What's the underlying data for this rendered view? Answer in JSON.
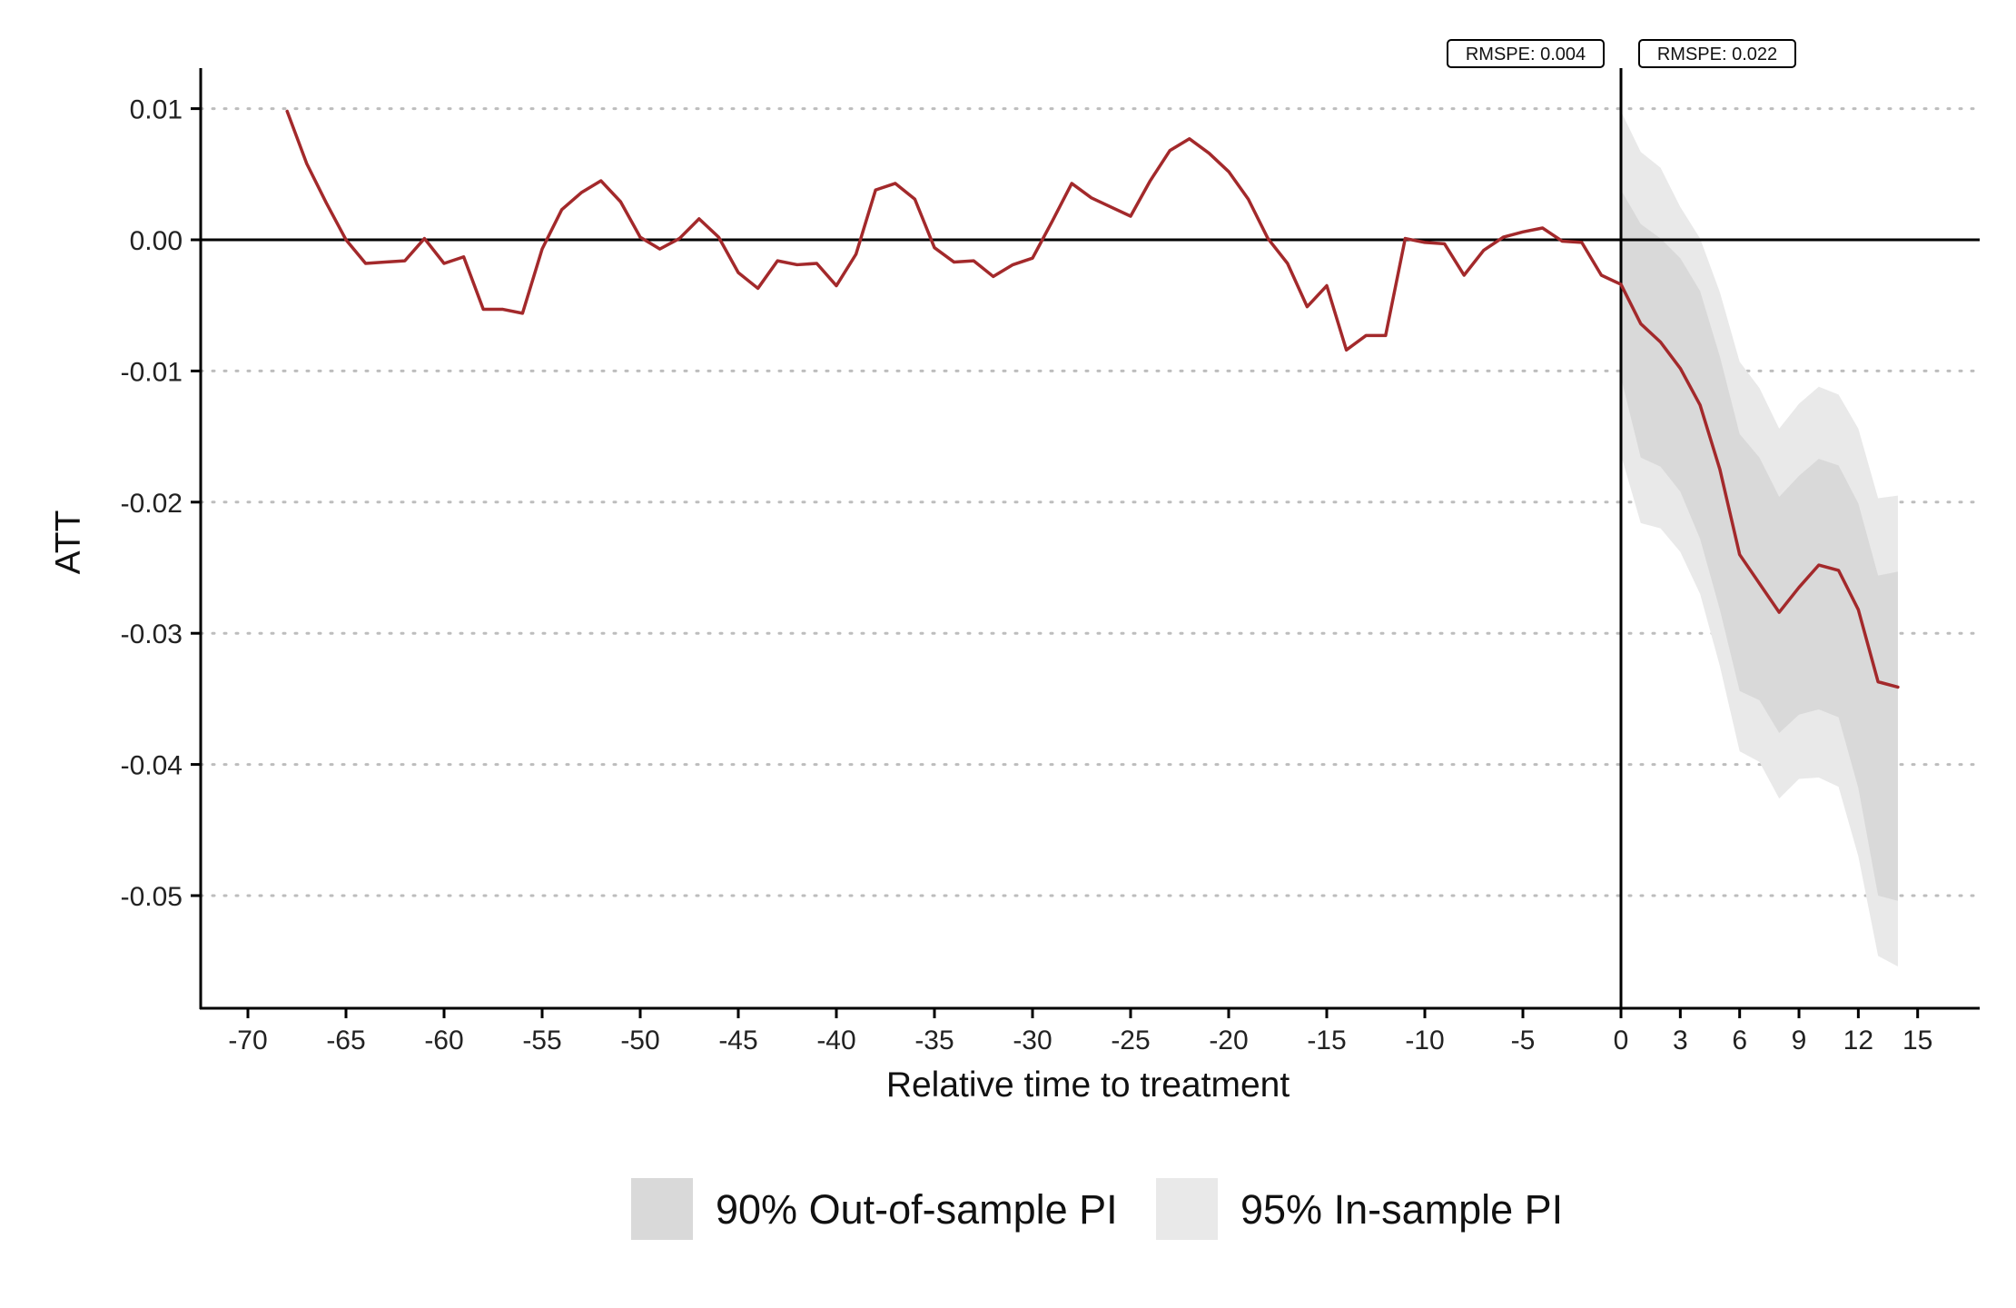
{
  "chart_data": {
    "type": "line",
    "title": "",
    "xlabel": "Relative time to treatment",
    "ylabel": "ATT",
    "xlim": [
      -72,
      18
    ],
    "ylim": [
      -0.059,
      0.0132
    ],
    "grid": {
      "horizontal_dotted": true,
      "vertical": false
    },
    "legend_position": "bottom",
    "x_ticks_pre": [
      -70,
      -65,
      -60,
      -55,
      -50,
      -45,
      -40,
      -35,
      -30,
      -25,
      -20,
      -15,
      -10,
      -5,
      0
    ],
    "x_ticks_post": [
      3,
      6,
      9,
      12,
      15
    ],
    "x_tick_labels_pre": [
      "-70",
      "-65",
      "-60",
      "-55",
      "-50",
      "-45",
      "-40",
      "-35",
      "-30",
      "-25",
      "-20",
      "-15",
      "-10",
      "-5",
      "0"
    ],
    "x_tick_labels_post": [
      "3",
      "6",
      "9",
      "12",
      "15"
    ],
    "y_ticks": [
      0.01,
      0.0,
      -0.01,
      -0.02,
      -0.03,
      -0.04,
      -0.05
    ],
    "y_tick_labels": [
      "0.01",
      "0.00",
      "-0.01",
      "-0.02",
      "-0.03",
      "-0.04",
      "-0.05"
    ],
    "reference_lines": {
      "horizontal_y": 0,
      "vertical_x": 0
    },
    "annotations": [
      {
        "text": "RMSPE: 0.004",
        "period": "pre-treatment"
      },
      {
        "text": "RMSPE: 0.022",
        "period": "post-treatment"
      }
    ],
    "series": [
      {
        "name": "",
        "color": "#a3292b",
        "x": [
          -68,
          -67,
          -66,
          -65,
          -64,
          -63,
          -62,
          -61,
          -60,
          -59,
          -58,
          -57,
          -56,
          -55,
          -54,
          -53,
          -52,
          -51,
          -50,
          -49,
          -48,
          -47,
          -46,
          -45,
          -44,
          -43,
          -42,
          -41,
          -40,
          -39,
          -38,
          -37,
          -36,
          -35,
          -34,
          -33,
          -32,
          -31,
          -30,
          -29,
          -28,
          -27,
          -26,
          -25,
          -24,
          -23,
          -22,
          -21,
          -20,
          -19,
          -18,
          -17,
          -16,
          -15,
          -14,
          -13,
          -12,
          -11,
          -10,
          -9,
          -8,
          -7,
          -6,
          -5,
          -4,
          -3,
          -2,
          -1,
          0,
          1,
          2,
          3,
          4,
          5,
          6,
          7,
          8,
          9,
          10,
          11,
          12,
          13,
          14
        ],
        "values": [
          0.0098,
          0.0058,
          0.0028,
          0.0,
          -0.0018,
          -0.0017,
          -0.0016,
          0.0001,
          -0.0018,
          -0.0013,
          -0.0053,
          -0.0053,
          -0.0056,
          -0.0007,
          0.0023,
          0.0036,
          0.0045,
          0.0029,
          0.0002,
          -0.0007,
          0.0001,
          0.0016,
          0.0002,
          -0.0025,
          -0.0037,
          -0.0016,
          -0.0019,
          -0.0018,
          -0.0035,
          -0.0011,
          0.0038,
          0.0043,
          0.0031,
          -0.0006,
          -0.0017,
          -0.0016,
          -0.0028,
          -0.0019,
          -0.0014,
          0.0014,
          0.0043,
          0.0032,
          0.0025,
          0.0018,
          0.0045,
          0.0068,
          0.0077,
          0.0066,
          0.0052,
          0.0031,
          0.0001,
          -0.0018,
          -0.0051,
          -0.0035,
          -0.0084,
          -0.0073,
          -0.0073,
          0.0001,
          -0.0002,
          -0.0003,
          -0.0027,
          -0.0008,
          0.0002,
          0.0006,
          0.0009,
          -0.0001,
          -0.0002,
          -0.0027,
          -0.0034,
          -0.0064,
          -0.0078,
          -0.0098,
          -0.0126,
          -0.0175,
          -0.024,
          -0.0262,
          -0.0284,
          -0.0265,
          -0.0248,
          -0.0252,
          -0.0282,
          -0.0337,
          -0.0341
        ]
      }
    ],
    "bands": [
      {
        "name": "95% In-sample PI",
        "color": "#e9e9e9",
        "x": [
          0,
          1,
          2,
          3,
          4,
          5,
          6,
          7,
          8,
          9,
          10,
          11,
          12,
          13,
          14
        ],
        "upper": [
          0.0098,
          0.0067,
          0.0055,
          0.0025,
          0.0001,
          -0.004,
          -0.0093,
          -0.0113,
          -0.0144,
          -0.0125,
          -0.0112,
          -0.0118,
          -0.0144,
          -0.0197,
          -0.0195
        ],
        "lower": [
          -0.0164,
          -0.0216,
          -0.022,
          -0.0238,
          -0.027,
          -0.0325,
          -0.039,
          -0.0398,
          -0.0426,
          -0.0411,
          -0.041,
          -0.0417,
          -0.047,
          -0.0546,
          -0.0554
        ]
      },
      {
        "name": "90% Out-of-sample PI",
        "color": "#d9d9d9",
        "x": [
          0,
          1,
          2,
          3,
          4,
          5,
          6,
          7,
          8,
          9,
          10,
          11,
          12,
          13,
          14
        ],
        "upper": [
          0.0038,
          0.0012,
          0.0001,
          -0.0014,
          -0.0039,
          -0.0089,
          -0.0148,
          -0.0166,
          -0.0196,
          -0.018,
          -0.0167,
          -0.0172,
          -0.0201,
          -0.0256,
          -0.0253
        ],
        "lower": [
          -0.0105,
          -0.0166,
          -0.0173,
          -0.0192,
          -0.0228,
          -0.0282,
          -0.0344,
          -0.0351,
          -0.0376,
          -0.0362,
          -0.0358,
          -0.0364,
          -0.0418,
          -0.05,
          -0.0504
        ]
      }
    ],
    "legend": [
      {
        "label": "90% Out-of-sample PI",
        "color": "#d9d9d9"
      },
      {
        "label": "95% In-sample PI",
        "color": "#e9e9e9"
      }
    ]
  }
}
